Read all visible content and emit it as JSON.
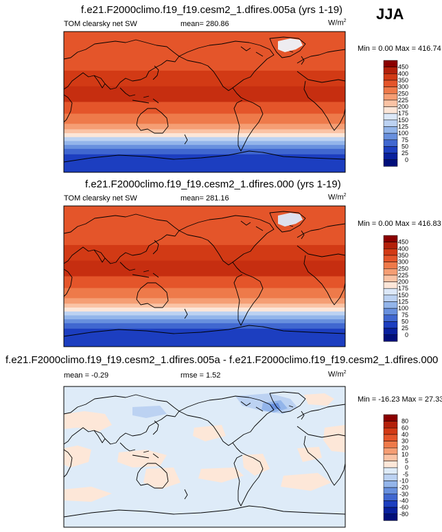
{
  "season": "JJA",
  "panels": [
    {
      "id": "p1",
      "title": "f.e21.F2000climo.f19_f19.cesm2_1.dfires.005a (yrs 1-19)",
      "variable": "TOM clearsky net SW",
      "mean_text": "mean= 280.86",
      "units_base": "W/m",
      "units_sup": "2",
      "minmax": "Min =   0.00 Max = 416.74"
    },
    {
      "id": "p2",
      "title": "f.e21.F2000climo.f19_f19.cesm2_1.dfires.000 (yrs 1-19)",
      "variable": "TOM clearsky net SW",
      "mean_text": "mean= 281.16",
      "units_base": "W/m",
      "units_sup": "2",
      "minmax": "Min =   0.00 Max = 416.83"
    },
    {
      "id": "p3",
      "title": "f.e21.F2000climo.f19_f19.cesm2_1.dfires.005a - f.e21.F2000climo.f19_f19.cesm2_1.dfires.000",
      "mean_text": "mean =  -0.29",
      "rmse_text": "rmse =   1.52",
      "units_base": "W/m",
      "units_sup": "2",
      "minmax": "Min = -16.23 Max =  27.33"
    }
  ],
  "colorbars": [
    {
      "levels": [
        "450",
        "400",
        "350",
        "300",
        "250",
        "225",
        "200",
        "175",
        "150",
        "125",
        "100",
        "75",
        "50",
        "25",
        "0"
      ],
      "colors": [
        "#8b0000",
        "#b3200a",
        "#d23a15",
        "#e4552a",
        "#ee7a4a",
        "#f59e74",
        "#fac3a5",
        "#fce6d8",
        "#dce8f8",
        "#bcd2f2",
        "#93b5ea",
        "#6890de",
        "#4067d0",
        "#1c3ec0",
        "#08209e",
        "#000e7a"
      ]
    },
    {
      "levels": [
        "450",
        "400",
        "350",
        "300",
        "250",
        "225",
        "200",
        "175",
        "150",
        "125",
        "100",
        "75",
        "50",
        "25",
        "0"
      ],
      "colors": [
        "#8b0000",
        "#b3200a",
        "#d23a15",
        "#e4552a",
        "#ee7a4a",
        "#f59e74",
        "#fac3a5",
        "#fce6d8",
        "#dce8f8",
        "#bcd2f2",
        "#93b5ea",
        "#6890de",
        "#4067d0",
        "#1c3ec0",
        "#08209e",
        "#000e7a"
      ]
    },
    {
      "levels": [
        "80",
        "60",
        "40",
        "30",
        "20",
        "10",
        "5",
        "0",
        "-5",
        "-10",
        "-20",
        "-30",
        "-40",
        "-60",
        "-80"
      ],
      "colors": [
        "#8b0000",
        "#b3200a",
        "#d23a15",
        "#e4552a",
        "#ee7a4a",
        "#f59e74",
        "#fac3a5",
        "#fde7d8",
        "#deebf8",
        "#bcd2f2",
        "#93b5ea",
        "#6890de",
        "#4067d0",
        "#1c3ec0",
        "#08209e",
        "#000e7a"
      ]
    }
  ],
  "map_bands": [
    {
      "stops": [
        {
          "lat": 90,
          "color": "#e4552a"
        },
        {
          "lat": 60,
          "color": "#e4552a"
        },
        {
          "lat": 40,
          "color": "#d23a15"
        },
        {
          "lat": 20,
          "color": "#c62e10"
        },
        {
          "lat": 0,
          "color": "#e4552a"
        },
        {
          "lat": -15,
          "color": "#ee7a4a"
        },
        {
          "lat": -28,
          "color": "#f59e74"
        },
        {
          "lat": -35,
          "color": "#fac3a5"
        },
        {
          "lat": -40,
          "color": "#fce6d8"
        },
        {
          "lat": -45,
          "color": "#bcd2f2"
        },
        {
          "lat": -50,
          "color": "#93b5ea"
        },
        {
          "lat": -55,
          "color": "#6890de"
        },
        {
          "lat": -60,
          "color": "#4067d0"
        },
        {
          "lat": -67,
          "color": "#1c3ec0"
        },
        {
          "lat": -90,
          "color": "#1c3ec0"
        }
      ]
    },
    {
      "stops": [
        {
          "lat": 90,
          "color": "#e4552a"
        },
        {
          "lat": 60,
          "color": "#e4552a"
        },
        {
          "lat": 40,
          "color": "#d23a15"
        },
        {
          "lat": 20,
          "color": "#c62e10"
        },
        {
          "lat": 0,
          "color": "#e4552a"
        },
        {
          "lat": -15,
          "color": "#ee7a4a"
        },
        {
          "lat": -28,
          "color": "#f59e74"
        },
        {
          "lat": -35,
          "color": "#fac3a5"
        },
        {
          "lat": -40,
          "color": "#fce6d8"
        },
        {
          "lat": -45,
          "color": "#bcd2f2"
        },
        {
          "lat": -50,
          "color": "#93b5ea"
        },
        {
          "lat": -55,
          "color": "#6890de"
        },
        {
          "lat": -60,
          "color": "#4067d0"
        },
        {
          "lat": -67,
          "color": "#1c3ec0"
        },
        {
          "lat": -90,
          "color": "#1c3ec0"
        }
      ]
    },
    {
      "stops": [
        {
          "lat": 90,
          "color": "#deebf8"
        },
        {
          "lat": -90,
          "color": "#deebf8"
        }
      ]
    }
  ],
  "chart_data": [
    {
      "type": "heatmap",
      "title": "f.e21.F2000climo.f19_f19.cesm2_1.dfires.005a (yrs 1-19)",
      "variable": "TOM clearsky net SW",
      "units": "W/m2",
      "mean": 280.86,
      "min": 0.0,
      "max": 416.74,
      "season": "JJA",
      "contour_levels": [
        0,
        25,
        50,
        75,
        100,
        125,
        150,
        175,
        200,
        225,
        250,
        300,
        350,
        400,
        450
      ]
    },
    {
      "type": "heatmap",
      "title": "f.e21.F2000climo.f19_f19.cesm2_1.dfires.000 (yrs 1-19)",
      "variable": "TOM clearsky net SW",
      "units": "W/m2",
      "mean": 281.16,
      "min": 0.0,
      "max": 416.83,
      "season": "JJA",
      "contour_levels": [
        0,
        25,
        50,
        75,
        100,
        125,
        150,
        175,
        200,
        225,
        250,
        300,
        350,
        400,
        450
      ]
    },
    {
      "type": "heatmap",
      "title": "f.e21.F2000climo.f19_f19.cesm2_1.dfires.005a - f.e21.F2000climo.f19_f19.cesm2_1.dfires.000",
      "units": "W/m2",
      "mean": -0.29,
      "rmse": 1.52,
      "min": -16.23,
      "max": 27.33,
      "season": "JJA",
      "contour_levels": [
        -80,
        -60,
        -40,
        -30,
        -20,
        -10,
        -5,
        0,
        5,
        10,
        20,
        30,
        40,
        60,
        80
      ]
    }
  ]
}
